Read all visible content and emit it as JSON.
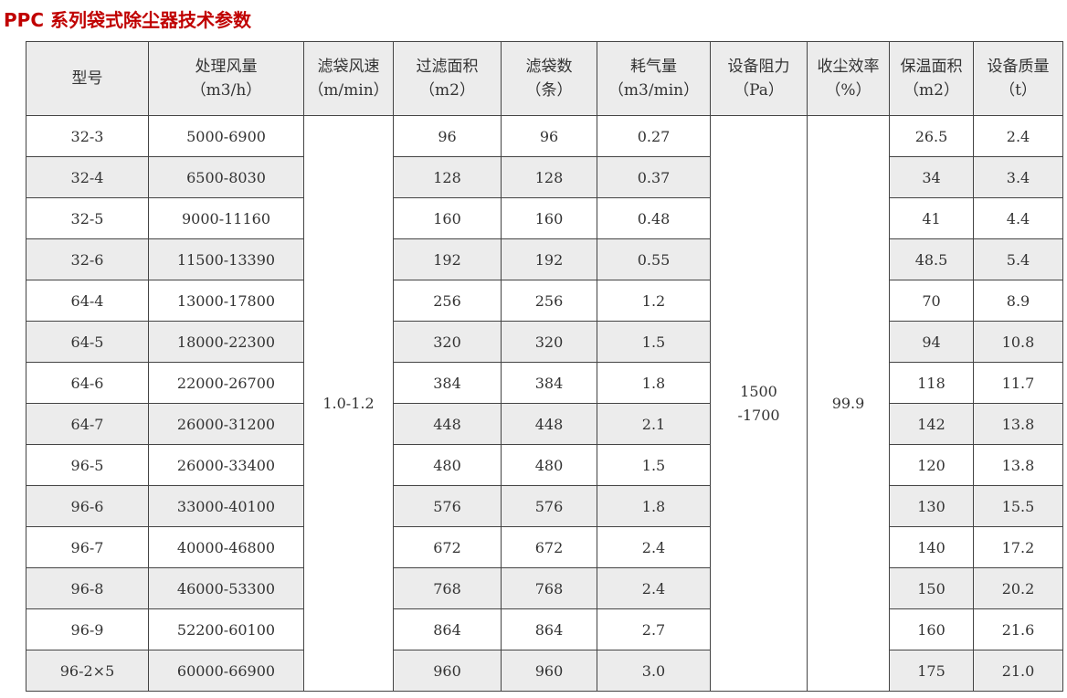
{
  "title": "PPC 系列袋式除尘器技术参数",
  "headers": [
    [
      "型号",
      ""
    ],
    [
      "处理风量",
      "（m3/h）"
    ],
    [
      "滤袋风速",
      "（m/min）"
    ],
    [
      "过滤面积",
      "（m2）"
    ],
    [
      "滤袋数",
      "（条）"
    ],
    [
      "耗气量",
      "（m3/min）"
    ],
    [
      "设备阻力",
      "（Pa）"
    ],
    [
      "收尘效率",
      "（%）"
    ],
    [
      "保温面积",
      "（m2）"
    ],
    [
      "设备质量",
      "（t）"
    ]
  ],
  "merged": {
    "filter_speed": "1.0-1.2",
    "resistance_line1": "1500",
    "resistance_line2": "-1700",
    "efficiency": "99.9"
  },
  "rows": [
    [
      "32-3",
      "5000-6900",
      "96",
      "96",
      "0.27",
      "26.5",
      "2.4"
    ],
    [
      "32-4",
      "6500-8030",
      "128",
      "128",
      "0.37",
      "34",
      "3.4"
    ],
    [
      "32-5",
      "9000-11160",
      "160",
      "160",
      "0.48",
      "41",
      "4.4"
    ],
    [
      "32-6",
      "11500-13390",
      "192",
      "192",
      "0.55",
      "48.5",
      "5.4"
    ],
    [
      "64-4",
      "13000-17800",
      "256",
      "256",
      "1.2",
      "70",
      "8.9"
    ],
    [
      "64-5",
      "18000-22300",
      "320",
      "320",
      "1.5",
      "94",
      "10.8"
    ],
    [
      "64-6",
      "22000-26700",
      "384",
      "384",
      "1.8",
      "118",
      "11.7"
    ],
    [
      "64-7",
      "26000-31200",
      "448",
      "448",
      "2.1",
      "142",
      "13.8"
    ],
    [
      "96-5",
      "26000-33400",
      "480",
      "480",
      "1.5",
      "120",
      "13.8"
    ],
    [
      "96-6",
      "33000-40100",
      "576",
      "576",
      "1.8",
      "130",
      "15.5"
    ],
    [
      "96-7",
      "40000-46800",
      "672",
      "672",
      "2.4",
      "140",
      "17.2"
    ],
    [
      "96-8",
      "46000-53300",
      "768",
      "768",
      "2.4",
      "150",
      "20.2"
    ],
    [
      "96-9",
      "52200-60100",
      "864",
      "864",
      "2.7",
      "160",
      "21.6"
    ],
    [
      "96-2×5",
      "60000-66900",
      "960",
      "960",
      "3.0",
      "175",
      "21.0"
    ]
  ],
  "colors": {
    "title": "#c00000",
    "header_bg": "#ececec",
    "alt_row_bg": "#ececec"
  }
}
